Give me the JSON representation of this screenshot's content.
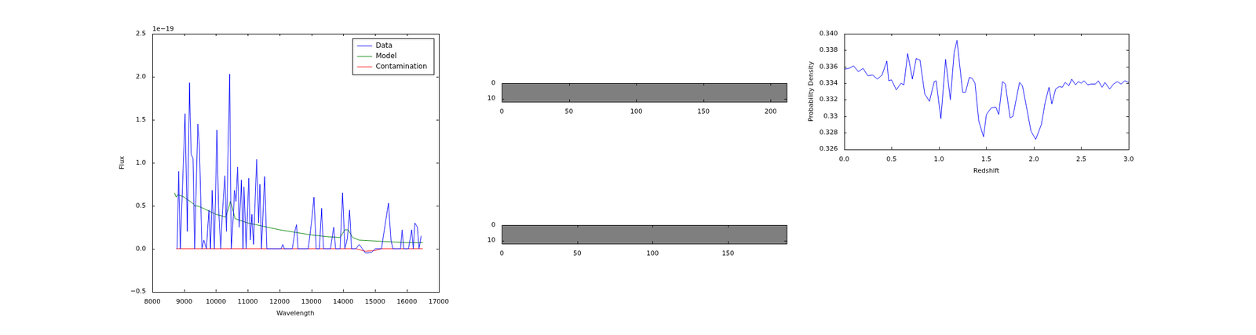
{
  "chart_data": [
    {
      "type": "line",
      "xlabel": "Wavelength",
      "ylabel": "Flux",
      "y_offset_label": "1e−19",
      "xlim": [
        8000,
        17000
      ],
      "xticks": [
        8000,
        9000,
        10000,
        11000,
        12000,
        13000,
        14000,
        15000,
        16000,
        17000
      ],
      "ylim": [
        -0.5,
        2.5
      ],
      "yticks": [
        {
          "value": -0.5,
          "label": "−0.5"
        },
        {
          "value": 0,
          "label": "0.0"
        },
        {
          "value": 0.5,
          "label": "0.5"
        },
        {
          "value": 1,
          "label": "1.0"
        },
        {
          "value": 1.5,
          "label": "1.5"
        },
        {
          "value": 2,
          "label": "2.0"
        },
        {
          "value": 2.5,
          "label": "2.5"
        }
      ],
      "legend": "upper right",
      "series": [
        {
          "name": "Data",
          "color": "#0000ff",
          "x": [
            8780,
            8830,
            8880,
            9030,
            9100,
            9170,
            9220,
            9280,
            9330,
            9430,
            9480,
            9560,
            9620,
            9700,
            9780,
            9830,
            9880,
            9950,
            10030,
            10080,
            10150,
            10200,
            10280,
            10330,
            10430,
            10480,
            10550,
            10580,
            10630,
            10680,
            10730,
            10800,
            10850,
            10880,
            10950,
            11030,
            11080,
            11130,
            11180,
            11280,
            11340,
            11380,
            11430,
            11530,
            11600,
            12050,
            12100,
            12150,
            12400,
            12480,
            12530,
            12580,
            12900,
            13000,
            13080,
            13150,
            13250,
            13320,
            13380,
            13600,
            13700,
            13760,
            13900,
            13980,
            14050,
            14130,
            14200,
            14260,
            14400,
            14500,
            14600,
            14700,
            14900,
            15000,
            15200,
            15420,
            15500,
            15560,
            15800,
            15850,
            15900,
            16050,
            16150,
            16200,
            16250,
            16330,
            16380,
            16450
          ],
          "values": [
            0,
            0.9,
            0,
            1.57,
            0.2,
            1.93,
            1.1,
            1.05,
            0,
            1.45,
            1.2,
            0,
            0.1,
            0,
            0.45,
            0,
            0.68,
            0,
            1.38,
            0.5,
            0,
            0.4,
            0.85,
            0.2,
            2.03,
            0,
            0.4,
            0.68,
            0.55,
            0.95,
            0.25,
            0.8,
            0,
            0.72,
            0,
            0.82,
            0.1,
            0.4,
            0.05,
            1.04,
            0.3,
            0.75,
            0,
            0.84,
            0,
            0,
            0.05,
            0,
            0,
            0.2,
            0.28,
            0,
            0,
            0.3,
            0.6,
            0,
            0,
            0.47,
            0,
            0,
            0.25,
            0,
            0,
            0.65,
            0,
            0.12,
            0.45,
            0,
            0,
            0.05,
            0,
            -0.05,
            -0.04,
            0,
            0,
            0.53,
            0.1,
            0,
            0,
            0.22,
            0,
            0,
            0.22,
            0,
            0.3,
            0.25,
            0,
            0.15
          ]
        },
        {
          "name": "Model",
          "color": "#008000",
          "x": [
            8700,
            8750,
            8800,
            9000,
            9300,
            9350,
            9400,
            9600,
            10000,
            10300,
            10400,
            10450,
            10500,
            10600,
            11000,
            11500,
            12000,
            12500,
            13000,
            13500,
            13900,
            14050,
            14150,
            14300,
            14500,
            15000,
            15500,
            16000,
            16500
          ],
          "values": [
            0.65,
            0.6,
            0.63,
            0.6,
            0.52,
            0.49,
            0.5,
            0.47,
            0.4,
            0.37,
            0.47,
            0.55,
            0.5,
            0.35,
            0.3,
            0.26,
            0.22,
            0.19,
            0.16,
            0.14,
            0.13,
            0.22,
            0.22,
            0.13,
            0.1,
            0.09,
            0.08,
            0.07,
            0.07
          ]
        },
        {
          "name": "Contamination",
          "color": "#ff0000",
          "x": [
            8750,
            11000,
            14400,
            14700,
            15000,
            15200,
            16500
          ],
          "values": [
            0,
            0,
            0,
            -0.03,
            -0.02,
            0,
            0
          ]
        }
      ]
    },
    {
      "type": "image",
      "xlim": [
        0,
        212
      ],
      "xticks": [
        0,
        50,
        100,
        150,
        200
      ],
      "ylim": [
        0,
        12
      ],
      "yticks": [
        0,
        10
      ]
    },
    {
      "type": "image",
      "xlim": [
        0,
        189
      ],
      "xticks": [
        0,
        50,
        100,
        150
      ],
      "ylim": [
        0,
        12
      ],
      "yticks": [
        0,
        10
      ]
    },
    {
      "type": "line",
      "xlabel": "Redshift",
      "ylabel": "Probability Density",
      "xlim": [
        0,
        3
      ],
      "xticks": [
        {
          "value": 0,
          "label": "0.0"
        },
        {
          "value": 0.5,
          "label": "0.5"
        },
        {
          "value": 1,
          "label": "1.0"
        },
        {
          "value": 1.5,
          "label": "1.5"
        },
        {
          "value": 2,
          "label": "2.0"
        },
        {
          "value": 2.5,
          "label": "2.5"
        },
        {
          "value": 3,
          "label": "3.0"
        }
      ],
      "ylim": [
        0.326,
        0.34
      ],
      "yticks": [
        0.326,
        0.328,
        0.33,
        0.332,
        0.334,
        0.336,
        0.338,
        {
          "value": 0.34,
          "label": "0.340"
        }
      ],
      "series": [
        {
          "color": "#0000ff",
          "x": [
            0,
            0.05,
            0.1,
            0.15,
            0.2,
            0.25,
            0.3,
            0.35,
            0.4,
            0.45,
            0.47,
            0.5,
            0.55,
            0.6,
            0.63,
            0.67,
            0.72,
            0.76,
            0.8,
            0.85,
            0.9,
            0.95,
            0.97,
            1.02,
            1.07,
            1.12,
            1.16,
            1.19,
            1.25,
            1.28,
            1.32,
            1.35,
            1.38,
            1.42,
            1.47,
            1.5,
            1.55,
            1.6,
            1.63,
            1.67,
            1.7,
            1.75,
            1.78,
            1.82,
            1.85,
            1.88,
            1.92,
            1.97,
            2.02,
            2.08,
            2.12,
            2.16,
            2.19,
            2.23,
            2.27,
            2.3,
            2.33,
            2.37,
            2.4,
            2.44,
            2.47,
            2.5,
            2.53,
            2.57,
            2.6,
            2.65,
            2.68,
            2.72,
            2.75,
            2.8,
            2.84,
            2.88,
            2.92,
            2.96,
            3.0
          ],
          "values": [
            0.3357,
            0.3358,
            0.3361,
            0.3354,
            0.3358,
            0.3349,
            0.335,
            0.3345,
            0.335,
            0.3367,
            0.3343,
            0.3344,
            0.3332,
            0.334,
            0.3338,
            0.3376,
            0.3345,
            0.337,
            0.3368,
            0.3327,
            0.3318,
            0.3342,
            0.3343,
            0.3297,
            0.3369,
            0.332,
            0.3377,
            0.3392,
            0.3329,
            0.3329,
            0.3347,
            0.3346,
            0.334,
            0.3294,
            0.3275,
            0.3302,
            0.331,
            0.3311,
            0.3302,
            0.3342,
            0.3339,
            0.3298,
            0.33,
            0.3324,
            0.3341,
            0.3337,
            0.3313,
            0.3282,
            0.3272,
            0.329,
            0.3317,
            0.3335,
            0.3315,
            0.3333,
            0.3336,
            0.3335,
            0.3341,
            0.3337,
            0.3345,
            0.3338,
            0.3342,
            0.334,
            0.3343,
            0.3338,
            0.3339,
            0.3339,
            0.3343,
            0.3335,
            0.3341,
            0.3333,
            0.3339,
            0.3342,
            0.3339,
            0.3343,
            0.3341
          ]
        }
      ]
    }
  ]
}
